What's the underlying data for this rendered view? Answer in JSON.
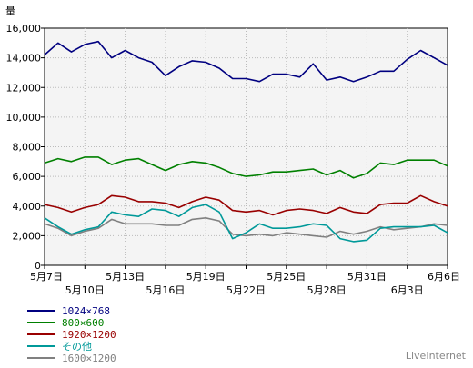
{
  "chart_data": {
    "type": "line",
    "ylabel": "量",
    "ylim": [
      0,
      16000
    ],
    "yticks": [
      0,
      2000,
      4000,
      6000,
      8000,
      10000,
      12000,
      14000,
      16000
    ],
    "ytick_labels": [
      "0",
      "2,000",
      "4,000",
      "6,000",
      "8,000",
      "10,000",
      "12,000",
      "14,000",
      "16,000"
    ],
    "x_labels": [
      "5月7日",
      "5月10日",
      "5月13日",
      "5月16日",
      "5月19日",
      "5月22日",
      "5月25日",
      "5月28日",
      "5月31日",
      "6月3日",
      "6月6日"
    ],
    "x_label_index": [
      0,
      3,
      6,
      9,
      12,
      15,
      18,
      21,
      24,
      27,
      30
    ],
    "grid": true,
    "series": [
      {
        "name": "1024×768",
        "color": "#000080",
        "values": [
          14200,
          15000,
          14400,
          14900,
          15100,
          14000,
          14500,
          14000,
          13700,
          12800,
          13400,
          13800,
          13700,
          13300,
          12600,
          12600,
          12400,
          12900,
          12900,
          12700,
          13600,
          12500,
          12700,
          12400,
          12700,
          13100,
          13100,
          13900,
          14500,
          14000,
          13500
        ]
      },
      {
        "name": "800×600",
        "color": "#008000",
        "values": [
          6900,
          7200,
          7000,
          7300,
          7300,
          6800,
          7100,
          7200,
          6800,
          6400,
          6800,
          7000,
          6900,
          6600,
          6200,
          6000,
          6100,
          6300,
          6300,
          6400,
          6500,
          6100,
          6400,
          5900,
          6200,
          6900,
          6800,
          7100,
          7100,
          7100,
          6700
        ]
      },
      {
        "name": "1920×1200",
        "color": "#990000",
        "values": [
          4100,
          3900,
          3600,
          3900,
          4100,
          4700,
          4600,
          4300,
          4300,
          4200,
          3900,
          4300,
          4600,
          4400,
          3700,
          3600,
          3700,
          3400,
          3700,
          3800,
          3700,
          3500,
          3900,
          3600,
          3500,
          4100,
          4200,
          4200,
          4700,
          4300,
          4000
        ]
      },
      {
        "name": "その他",
        "color": "#009999",
        "values": [
          3200,
          2600,
          2100,
          2400,
          2600,
          3600,
          3400,
          3300,
          3800,
          3700,
          3300,
          3900,
          4100,
          3600,
          1800,
          2200,
          2800,
          2500,
          2500,
          2600,
          2800,
          2700,
          1800,
          1600,
          1700,
          2500,
          2600,
          2600,
          2600,
          2700,
          2200
        ]
      },
      {
        "name": "1600×1200",
        "color": "#808080",
        "values": [
          2800,
          2500,
          2000,
          2300,
          2500,
          3100,
          2800,
          2800,
          2800,
          2700,
          2700,
          3100,
          3200,
          3000,
          2100,
          2000,
          2100,
          2000,
          2200,
          2100,
          2000,
          1900,
          2300,
          2100,
          2300,
          2600,
          2400,
          2500,
          2600,
          2800,
          2700
        ]
      }
    ]
  },
  "brand": "LiveInternet"
}
